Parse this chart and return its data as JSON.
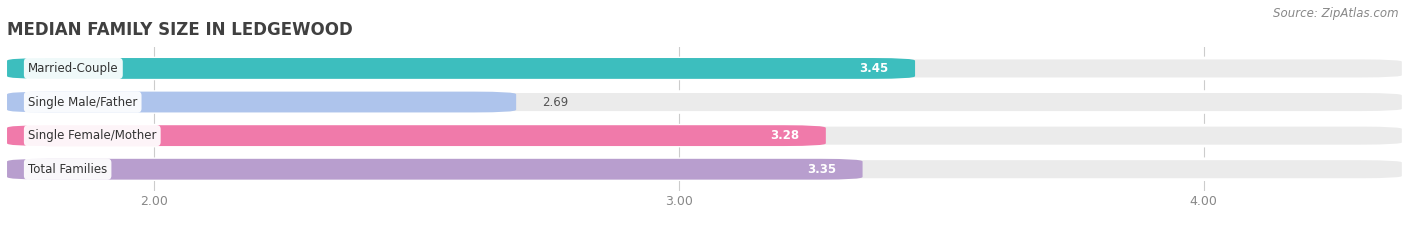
{
  "title": "MEDIAN FAMILY SIZE IN LEDGEWOOD",
  "source_text": "Source: ZipAtlas.com",
  "categories": [
    "Married-Couple",
    "Single Male/Father",
    "Single Female/Mother",
    "Total Families"
  ],
  "values": [
    3.45,
    2.69,
    3.28,
    3.35
  ],
  "colors": [
    "#3dbebe",
    "#aec4ec",
    "#f07aaa",
    "#b89ece"
  ],
  "label_colors": [
    "#ffffff",
    "#666666",
    "#ffffff",
    "#ffffff"
  ],
  "xlim": [
    1.72,
    4.38
  ],
  "xticks": [
    2.0,
    3.0,
    4.0
  ],
  "bar_height": 0.62,
  "figure_bg": "#ffffff",
  "bar_bg_color": "#ebebeb",
  "title_fontsize": 12,
  "label_fontsize": 8.5,
  "tick_fontsize": 9,
  "source_fontsize": 8.5
}
